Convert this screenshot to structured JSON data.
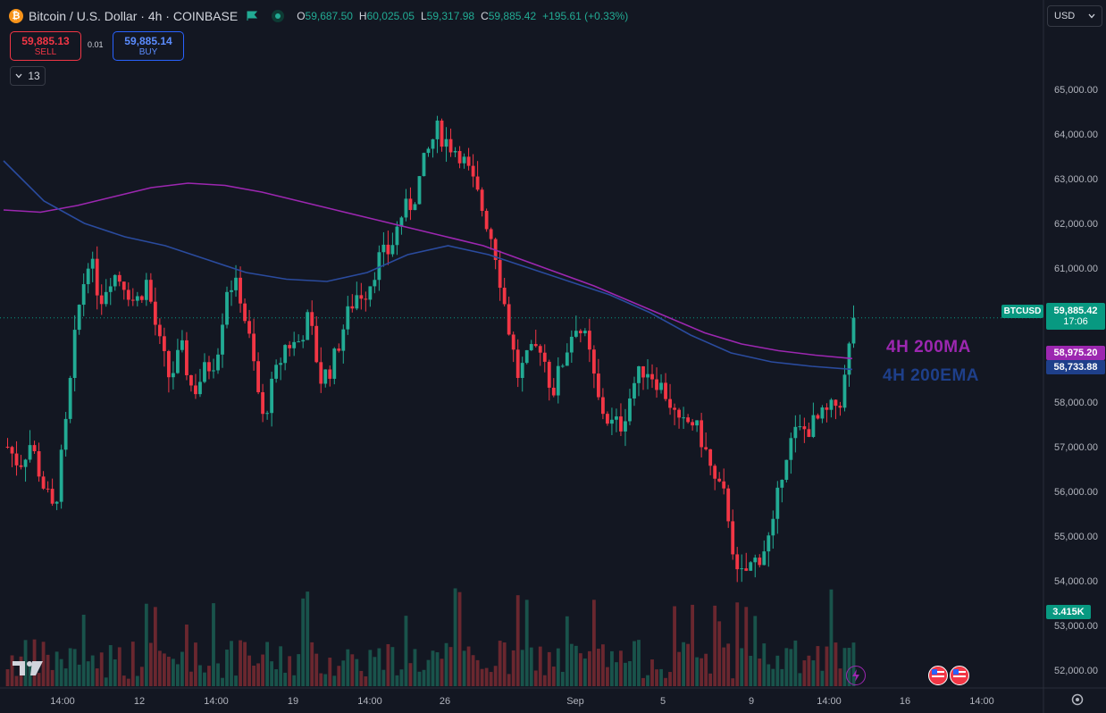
{
  "header": {
    "logo_symbol": "₿",
    "title": "Bitcoin / U.S. Dollar · 4h · COINBASE",
    "ohlc": {
      "o_label": "O",
      "o": "59,687.50",
      "h_label": "H",
      "h": "60,025.05",
      "l_label": "L",
      "l": "59,317.98",
      "c_label": "C",
      "c": "59,885.42",
      "change": "+195.61 (+0.33%)"
    }
  },
  "trade": {
    "sell_price": "59,885.13",
    "sell_label": "SELL",
    "spread": "0.01",
    "buy_price": "59,885.14",
    "buy_label": "BUY"
  },
  "indicators_count": "13",
  "currency": "USD",
  "labels": {
    "symbol_tag": "BTCUSD",
    "last_price": "59,885.42",
    "countdown": "17:06",
    "ma_value": "58,975.20",
    "ema_value": "58,733.88",
    "volume_value": "3.415K"
  },
  "annotations": {
    "ma": "4H 200MA",
    "ema": "4H 200EMA"
  },
  "colors": {
    "up": "#22ab94",
    "down": "#f23645",
    "ma": "#9c27b0",
    "ema": "#1e3f8a",
    "background": "#131722",
    "last_price": "#089981"
  },
  "icons": [
    "bitcoin-logo",
    "green-flag-icon",
    "tradingview-logo",
    "settings-gear-icon",
    "us-flag-event-icon",
    "lightning-event-icon"
  ],
  "chart_data": {
    "type": "candlestick",
    "title": "Bitcoin / U.S. Dollar · 4h · COINBASE",
    "xlabel": "",
    "ylabel": "",
    "ylim": [
      51700,
      65800
    ],
    "y_ticks": [
      "65,000.00",
      "64,000.00",
      "63,000.00",
      "62,000.00",
      "61,000.00",
      "60,000.00",
      "59,000.00",
      "58,000.00",
      "57,000.00",
      "56,000.00",
      "55,000.00",
      "54,000.00",
      "53,000.00",
      "52,000.00"
    ],
    "y_tick_values": [
      65000,
      64000,
      63000,
      62000,
      61000,
      60000,
      59000,
      58000,
      57000,
      56000,
      55000,
      54000,
      53000,
      52000
    ],
    "x_ticks": [
      "14:00",
      "12",
      "14:00",
      "19",
      "14:00",
      "26",
      "Sep",
      "5",
      "9",
      "14:00",
      "16",
      "14:00"
    ],
    "grid": false,
    "close": [
      57000,
      56600,
      57100,
      56200,
      55500,
      57400,
      59900,
      61300,
      60300,
      60900,
      60700,
      60200,
      60700,
      59400,
      58500,
      59200,
      58200,
      58700,
      59000,
      60700,
      60500,
      59200,
      57600,
      58500,
      59300,
      59300,
      59900,
      58500,
      58800,
      59700,
      60400,
      60500,
      61200,
      61400,
      62200,
      62500,
      63400,
      64100,
      63800,
      63600,
      63000,
      62300,
      61500,
      60000,
      58600,
      59000,
      59300,
      58200,
      59000,
      59800,
      59300,
      58000,
      57500,
      57500,
      58400,
      58800,
      58500,
      58100,
      57400,
      57600,
      57100,
      56200,
      55800,
      54000,
      54300,
      54600,
      55100,
      56800,
      57300,
      57400,
      57600,
      57800,
      58100,
      59885
    ],
    "series": [
      {
        "name": "4H 200MA",
        "values": [
          62300,
          62250,
          62400,
          62600,
          62800,
          62900,
          62850,
          62700,
          62500,
          62300,
          62100,
          61900,
          61700,
          61500,
          61200,
          60900,
          60600,
          60250,
          59900,
          59550,
          59300,
          59150,
          59050,
          58975
        ]
      },
      {
        "name": "4H 200EMA",
        "values": [
          63400,
          62500,
          62000,
          61700,
          61500,
          61200,
          60900,
          60750,
          60700,
          60900,
          61300,
          61500,
          61300,
          61000,
          60700,
          60400,
          60000,
          59500,
          59100,
          58900,
          58800,
          58733
        ]
      }
    ],
    "volume_last": "3.415K"
  }
}
